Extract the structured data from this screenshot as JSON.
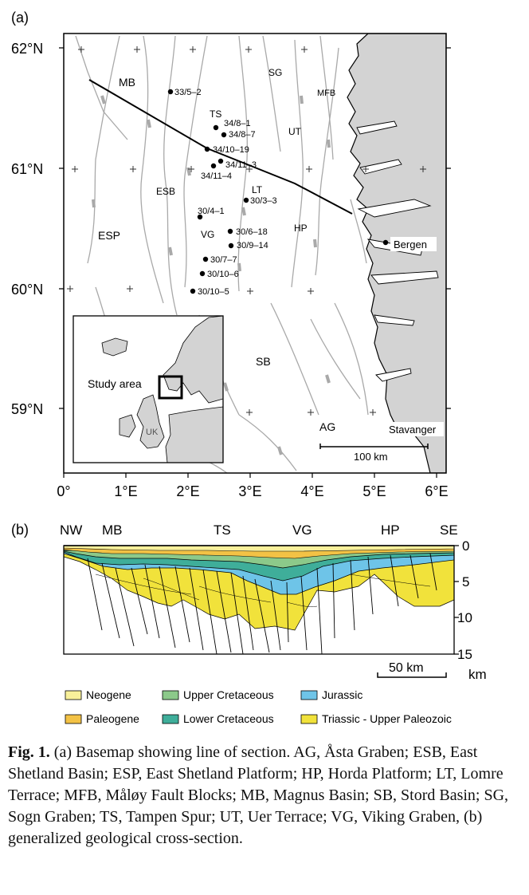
{
  "panel_a": {
    "label": "(a)",
    "lat_labels": [
      "62°N",
      "61°N",
      "60°N",
      "59°N"
    ],
    "lon_labels": [
      "0°",
      "1°E",
      "2°E",
      "3°E",
      "4°E",
      "5°E",
      "6°E"
    ],
    "regions": {
      "MB": "MB",
      "SG": "SG",
      "MFB": "MFB",
      "TS": "TS",
      "UT": "UT",
      "LT": "LT",
      "ESB": "ESB",
      "ESP": "ESP",
      "VG": "VG",
      "HP": "HP",
      "SB": "SB",
      "AG": "AG"
    },
    "wells": [
      "33/5–2",
      "34/8–1",
      "34/8–7",
      "34/10–19",
      "34/11–3",
      "34/11–4",
      "30/3–3",
      "30/4–1",
      "30/6–18",
      "30/9–14",
      "30/7–7",
      "30/10–6",
      "30/10–5"
    ],
    "cities": [
      "Bergen",
      "Stavanger"
    ],
    "scale_bar": "100 km",
    "inset": {
      "study_area": "Study area",
      "uk": "UK"
    },
    "colors": {
      "land": "#d3d3d3",
      "fault": "#a9a9a9",
      "frame": "#000000"
    }
  },
  "panel_b": {
    "label": "(b)",
    "top_labels": [
      "NW",
      "MB",
      "TS",
      "VG",
      "HP",
      "SE"
    ],
    "depth_ticks": [
      "0",
      "5",
      "10",
      "15"
    ],
    "depth_unit": "km",
    "scale_bar": "50 km",
    "legend": [
      {
        "name": "Neogene",
        "color": "#f8f09a"
      },
      {
        "name": "Upper Cretaceous",
        "color": "#8cc98a"
      },
      {
        "name": "Jurassic",
        "color": "#6ec4e8"
      },
      {
        "name": "Paleogene",
        "color": "#f3c245"
      },
      {
        "name": "Lower Cretaceous",
        "color": "#3fae9a"
      },
      {
        "name": "Triassic - Upper Paleozoic",
        "color": "#f1e23b"
      }
    ]
  },
  "caption": {
    "fig": "Fig. 1.",
    "text": "(a) Basemap showing line of section. AG, Åsta Graben; ESB, East Shetland Basin; ESP, East Shetland Platform; HP, Horda Platform; LT, Lomre Terrace; MFB, Måløy Fault Blocks; MB, Magnus Basin; SB, Stord Basin; SG, Sogn Graben; TS, Tampen Spur; UT, Uer Terrace; VG, Viking Graben, (b) generalized geological cross-section."
  }
}
